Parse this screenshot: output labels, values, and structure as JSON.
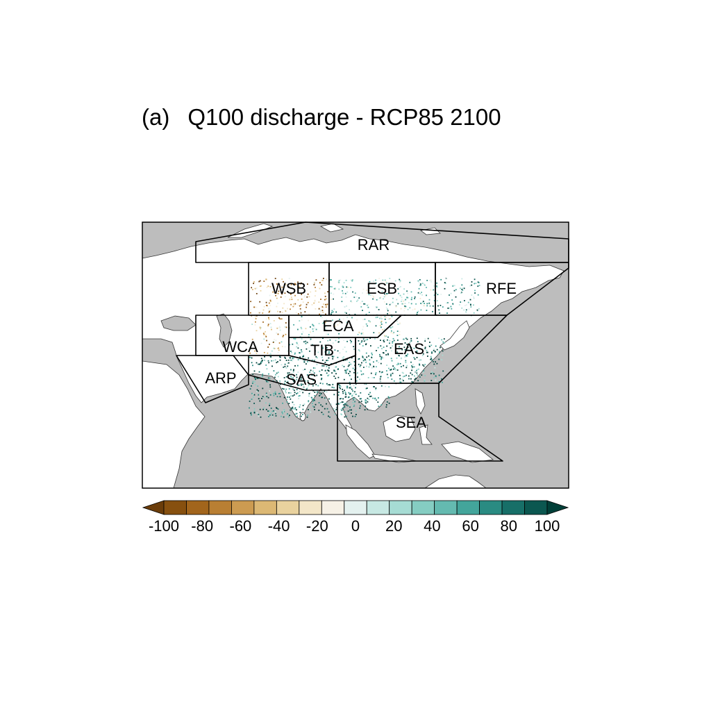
{
  "title": {
    "panel": "(a)",
    "text": "Q100 discharge - RCP85 2100"
  },
  "regions": [
    {
      "code": "RAR"
    },
    {
      "code": "WSB"
    },
    {
      "code": "ESB"
    },
    {
      "code": "RFE"
    },
    {
      "code": "ECA"
    },
    {
      "code": "WCA"
    },
    {
      "code": "TIB"
    },
    {
      "code": "EAS"
    },
    {
      "code": "ARP"
    },
    {
      "code": "SAS"
    },
    {
      "code": "SEA"
    }
  ],
  "colors": {
    "ocean": "#bdbdbd",
    "land": "#ffffff",
    "boundary": "#000000",
    "palette": [
      "#6b3d0a",
      "#87500f",
      "#a2651c",
      "#b97f33",
      "#cc9b51",
      "#dcb874",
      "#e9d29e",
      "#f3e6c8",
      "#f6f1e6",
      "#e4f1ef",
      "#c7e8e3",
      "#a6dcd4",
      "#85cdc2",
      "#64bab0",
      "#43a59b",
      "#2a8b82",
      "#176f68",
      "#0b5750",
      "#003f38"
    ]
  },
  "colorbar": {
    "min": -100,
    "max": 100,
    "step": 10,
    "tick_labels": [
      "-100",
      "-80",
      "-60",
      "-40",
      "-20",
      "0",
      "20",
      "40",
      "60",
      "80",
      "100"
    ]
  }
}
